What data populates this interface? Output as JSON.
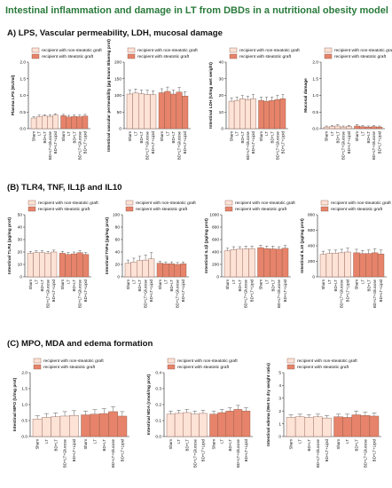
{
  "title": "Intestinal inflammation and damage in LT from DBDs in a nutritional obesity model",
  "sections": {
    "a": "A) LPS, Vascular permeability, LDH, mucosal damage",
    "b": "(B) TLR4, TNF, IL1β and IL10",
    "c": "(C) MPO, MDA and edema formation"
  },
  "legend": {
    "non_steatotic": "recipient with non-steatotic graft",
    "steatotic": "recipient with steatotic graft"
  },
  "colors": {
    "non_steatotic": "#fde2d6",
    "steatotic": "#e6836a",
    "bar_outline": "#8a5a4a",
    "title_green": "#2a7a3b"
  },
  "chart_data": [
    {
      "type": "bar",
      "ylabel": "Plasma LPS (EU/ml)",
      "yticks": [
        "0.0",
        "0.5",
        "1.0",
        "1.5",
        "2.0"
      ],
      "ylim": [
        0,
        2.0
      ],
      "categories": [
        "Sham",
        "LT",
        "BD+LT",
        "BD+LT+Glucose",
        "BD+LT+Lipid"
      ],
      "series": [
        {
          "name": "recipient with non-steatotic graft",
          "values": [
            0.32,
            0.36,
            0.38,
            0.37,
            0.41
          ],
          "errors": [
            0.04,
            0.05,
            0.04,
            0.05,
            0.04
          ]
        },
        {
          "name": "recipient with steatotic graft",
          "values": [
            0.39,
            0.35,
            0.37,
            0.36,
            0.38
          ],
          "errors": [
            0.04,
            0.05,
            0.04,
            0.05,
            0.05
          ]
        }
      ]
    },
    {
      "type": "bar",
      "ylabel": "Intestinal vascular permeability (µg Evans Bluemg prot)",
      "yticks": [
        "0",
        "50",
        "100",
        "150",
        "200"
      ],
      "ylim": [
        0,
        200
      ],
      "categories": [
        "Sham",
        "LT",
        "BD+LT",
        "BD+LT+Glucose",
        "BD+LT+Lipid"
      ],
      "series": [
        {
          "name": "recipient with non-steatotic graft",
          "values": [
            104,
            107,
            105,
            103,
            102
          ],
          "errors": [
            12,
            12,
            11,
            13,
            12
          ]
        },
        {
          "name": "recipient with steatotic graft",
          "values": [
            108,
            112,
            104,
            110,
            98
          ],
          "errors": [
            12,
            13,
            12,
            14,
            13
          ]
        }
      ]
    },
    {
      "type": "bar",
      "ylabel": "Intestinal LDH (U/mg wet weight)",
      "yticks": [
        "0",
        "10",
        "20",
        "30",
        "40"
      ],
      "ylim": [
        0,
        40
      ],
      "categories": [
        "Sham",
        "LT",
        "BD+LT",
        "BD+LT+Glucose",
        "BD+LT+Lipid"
      ],
      "series": [
        {
          "name": "recipient with non-steatotic graft",
          "values": [
            16.5,
            17.0,
            18.0,
            17.5,
            18.0
          ],
          "errors": [
            2.0,
            2.0,
            2.0,
            2.0,
            2.5
          ]
        },
        {
          "name": "recipient with steatotic graft",
          "values": [
            17.0,
            16.5,
            17.0,
            17.5,
            18.0
          ],
          "errors": [
            2.0,
            2.5,
            2.0,
            2.5,
            2.5
          ]
        }
      ]
    },
    {
      "type": "bar",
      "ylabel": "Mucosal damage",
      "yticks": [
        "0.0",
        "0.5",
        "1.0",
        "1.5",
        "2.0"
      ],
      "ylim": [
        0,
        2.0
      ],
      "categories": [
        "Sham",
        "LT",
        "BD+LT",
        "BD+LT+Glucose",
        "BD+LT+Lipid"
      ],
      "series": [
        {
          "name": "recipient with non-steatotic graft",
          "values": [
            0.05,
            0.06,
            0.08,
            0.05,
            0.07
          ],
          "errors": [
            0.03,
            0.03,
            0.04,
            0.03,
            0.03
          ]
        },
        {
          "name": "recipient with steatotic graft",
          "values": [
            0.08,
            0.06,
            0.05,
            0.06,
            0.05
          ],
          "errors": [
            0.04,
            0.03,
            0.03,
            0.03,
            0.03
          ]
        }
      ]
    },
    {
      "type": "bar",
      "ylabel": "Intestinal TLR4 (pg/mg prot)",
      "yticks": [
        "0",
        "10",
        "20",
        "30",
        "40",
        "50"
      ],
      "ylim": [
        0,
        50
      ],
      "categories": [
        "Sham",
        "LT",
        "BD+LT",
        "BD+LT+Glucose",
        "BD+LT+Lipid"
      ],
      "series": [
        {
          "name": "recipient with non-steatotic graft",
          "values": [
            19.0,
            19.5,
            19.5,
            19.0,
            20.0
          ],
          "errors": [
            1.5,
            1.5,
            1.5,
            1.5,
            1.5
          ]
        },
        {
          "name": "recipient with steatotic graft",
          "values": [
            19.0,
            18.0,
            18.5,
            19.5,
            18.0
          ],
          "errors": [
            1.5,
            1.5,
            1.5,
            1.5,
            1.5
          ]
        }
      ]
    },
    {
      "type": "bar",
      "ylabel": "Intestinal TNFα (pg/mg prot)",
      "yticks": [
        "0",
        "20",
        "40",
        "60",
        "80",
        "100"
      ],
      "ylim": [
        0,
        100
      ],
      "categories": [
        "Sham",
        "LT",
        "BD+LT",
        "BD+LT+Glucose",
        "BD+LT+Lipid"
      ],
      "series": [
        {
          "name": "recipient with non-steatotic graft",
          "values": [
            22,
            24,
            26,
            27,
            29
          ],
          "errors": [
            5,
            6,
            7,
            8,
            10
          ]
        },
        {
          "name": "recipient with steatotic graft",
          "values": [
            22,
            21,
            21,
            20,
            21
          ],
          "errors": [
            3,
            3,
            3,
            3,
            3
          ]
        }
      ]
    },
    {
      "type": "bar",
      "ylabel": "Intestinal IL1β (pg/mg prot)",
      "yticks": [
        "0",
        "200",
        "400",
        "600",
        "800",
        "1000"
      ],
      "ylim": [
        0,
        1000
      ],
      "categories": [
        "Sham",
        "LT",
        "BD+LT",
        "BD+LT+Glucose",
        "BD+LT+Lipid"
      ],
      "series": [
        {
          "name": "recipient with non-steatotic graft",
          "values": [
            420,
            440,
            445,
            450,
            455
          ],
          "errors": [
            40,
            45,
            40,
            45,
            40
          ]
        },
        {
          "name": "recipient with steatotic graft",
          "values": [
            470,
            455,
            450,
            445,
            460
          ],
          "errors": [
            40,
            40,
            45,
            40,
            45
          ]
        }
      ]
    },
    {
      "type": "bar",
      "ylabel": "Intestinal IL10 (pg/mg prot)",
      "yticks": [
        "0",
        "200",
        "400",
        "600",
        "800"
      ],
      "ylim": [
        0,
        800
      ],
      "categories": [
        "Sham",
        "LT",
        "BD+LT",
        "BD+LT+Glucose",
        "BD+LT+Lipid"
      ],
      "series": [
        {
          "name": "recipient with non-steatotic graft",
          "values": [
            290,
            300,
            305,
            310,
            320
          ],
          "errors": [
            40,
            45,
            40,
            45,
            50
          ]
        },
        {
          "name": "recipient with steatotic graft",
          "values": [
            310,
            300,
            300,
            310,
            295
          ],
          "errors": [
            45,
            40,
            45,
            50,
            50
          ]
        }
      ]
    },
    {
      "type": "bar",
      "ylabel": "Intestinal MPO (U/mg prot)",
      "yticks": [
        "0.0",
        "0.5",
        "1.0",
        "1.5",
        "2.0"
      ],
      "ylim": [
        0,
        2.0
      ],
      "categories": [
        "Sham",
        "LT",
        "BD+LT",
        "BD+LT+Glucose",
        "BD+LT+Lipid"
      ],
      "series": [
        {
          "name": "recipient with non-steatotic graft",
          "values": [
            0.55,
            0.6,
            0.62,
            0.64,
            0.66
          ],
          "errors": [
            0.1,
            0.12,
            0.12,
            0.14,
            0.15
          ]
        },
        {
          "name": "recipient with steatotic graft",
          "values": [
            0.68,
            0.7,
            0.72,
            0.78,
            0.64
          ],
          "errors": [
            0.12,
            0.14,
            0.15,
            0.16,
            0.14
          ]
        }
      ]
    },
    {
      "type": "bar",
      "ylabel": "Intestinal MDA (nmol/mg prot)",
      "yticks": [
        "0.0",
        "0.1",
        "0.2",
        "0.3",
        "0.4"
      ],
      "ylim": [
        0,
        0.4
      ],
      "categories": [
        "Sham",
        "LT",
        "BD+LT",
        "BD+LT+Glucose",
        "BD+LT+Lipid"
      ],
      "series": [
        {
          "name": "recipient with non-steatotic graft",
          "values": [
            0.14,
            0.145,
            0.15,
            0.14,
            0.145
          ],
          "errors": [
            0.02,
            0.02,
            0.02,
            0.02,
            0.02
          ]
        },
        {
          "name": "recipient with steatotic graft",
          "values": [
            0.14,
            0.15,
            0.16,
            0.17,
            0.16
          ],
          "errors": [
            0.02,
            0.02,
            0.02,
            0.025,
            0.02
          ]
        }
      ]
    },
    {
      "type": "bar",
      "ylabel": "Intestinal edema (Wet to dry weight ratio)",
      "yticks": [
        "0",
        "1",
        "2",
        "3",
        "4",
        "5"
      ],
      "ylim": [
        0,
        5
      ],
      "categories": [
        "Sham",
        "LT",
        "BD+LT",
        "BD+LT+Glucose",
        "BD+LT+Lipid"
      ],
      "series": [
        {
          "name": "recipient with non-steatotic graft",
          "values": [
            1.5,
            1.55,
            1.5,
            1.55,
            1.45
          ],
          "errors": [
            0.2,
            0.2,
            0.2,
            0.2,
            0.2
          ]
        },
        {
          "name": "recipient with steatotic graft",
          "values": [
            1.55,
            1.5,
            1.7,
            1.65,
            1.6
          ],
          "errors": [
            0.2,
            0.25,
            0.3,
            0.25,
            0.25
          ]
        }
      ]
    }
  ]
}
